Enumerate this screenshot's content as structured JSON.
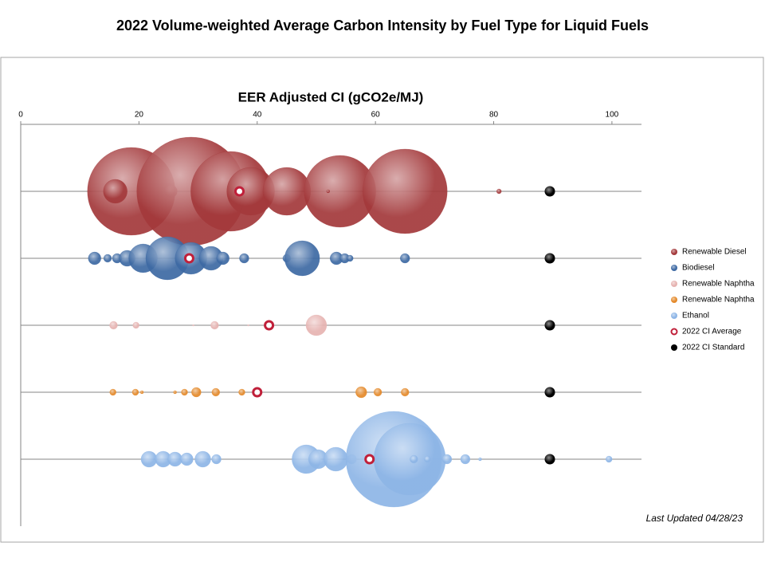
{
  "chart_data": {
    "type": "bubble",
    "title": "2022 Volume-weighted  Average Carbon Intensity  by Fuel Type  for Liquid Fuels",
    "x_label": "EER Adjusted CI (gCO2e/MJ)",
    "note": "Last Updated 04/28/23",
    "xlim": [
      0,
      105
    ],
    "xticks": [
      0,
      20,
      40,
      60,
      80,
      100
    ],
    "ylim": [
      0,
      6
    ],
    "legend_position": "right",
    "series": [
      {
        "name": "Renewable Diesel",
        "color": "#a3393b",
        "x": [
          18.7,
          16,
          25.4,
          28.8,
          35.5,
          38.9,
          45,
          54,
          65,
          52,
          80.9
        ],
        "y": [
          5,
          5,
          5,
          5,
          5,
          5,
          5,
          5,
          5,
          5,
          5
        ],
        "sizes": [
          3025,
          225,
          64,
          4624,
          2500,
          900,
          900,
          2025,
          2809,
          4,
          9
        ]
      },
      {
        "name": "Biodiesel",
        "color": "#3d69a3",
        "x": [
          12.5,
          14.7,
          16.3,
          18,
          20.7,
          24.8,
          28.8,
          32.2,
          34.2,
          37.8,
          45,
          47.6,
          53.4,
          54.8,
          55.7,
          65
        ],
        "y": [
          4,
          4,
          4,
          4,
          4,
          4,
          4,
          4,
          4,
          4,
          4,
          4,
          4,
          4,
          4,
          4
        ],
        "sizes": [
          64,
          25,
          36,
          100,
          324,
          729,
          400,
          225,
          64,
          36,
          25,
          484,
          64,
          36,
          16,
          36
        ]
      },
      {
        "name": "Renewable Naphtha",
        "color": "#e6b3b1",
        "x": [
          15.7,
          19.5,
          29.2,
          32.8,
          38.5,
          50
        ],
        "y": [
          3,
          3,
          3,
          3,
          3,
          3
        ],
        "sizes": [
          25,
          16,
          1,
          25,
          1,
          169
        ]
      },
      {
        "name": "Renewable Naphtha",
        "color": "#e4892a",
        "x": [
          15.6,
          19.4,
          20.5,
          26.1,
          27.7,
          29.7,
          33,
          37.4,
          57.6,
          60.4,
          65
        ],
        "y": [
          2,
          2,
          2,
          2,
          2,
          2,
          2,
          2,
          2,
          2,
          2
        ],
        "sizes": [
          16,
          16,
          4,
          4,
          16,
          36,
          25,
          16,
          49,
          25,
          25
        ]
      },
      {
        "name": "Ethanol",
        "color": "#8db5e6",
        "x": [
          21.7,
          24.1,
          26.1,
          28.1,
          30.8,
          33.1,
          48.3,
          50.3,
          53.3,
          56,
          63.1,
          65.8,
          66.5,
          68.8,
          72.1,
          75.2,
          77.7,
          99.5
        ],
        "y": [
          1,
          1,
          1,
          1,
          1,
          1,
          1,
          1,
          1,
          1,
          1,
          1,
          1,
          1,
          1,
          1,
          1,
          1
        ],
        "sizes": [
          100,
          100,
          81,
          64,
          100,
          36,
          324,
          144,
          225,
          36,
          3600,
          2025,
          25,
          16,
          36,
          36,
          4,
          16
        ]
      },
      {
        "name": "2022 CI Average",
        "color": "#c0203a",
        "x": [
          37,
          28.5,
          42,
          40,
          59
        ],
        "y": [
          5,
          4,
          3,
          2,
          1
        ]
      },
      {
        "name": "2022 CI Standard",
        "color": "#000000",
        "x": [
          89.5,
          89.5,
          89.5,
          89.5,
          89.5
        ],
        "y": [
          5,
          4,
          3,
          2,
          1
        ]
      }
    ]
  }
}
